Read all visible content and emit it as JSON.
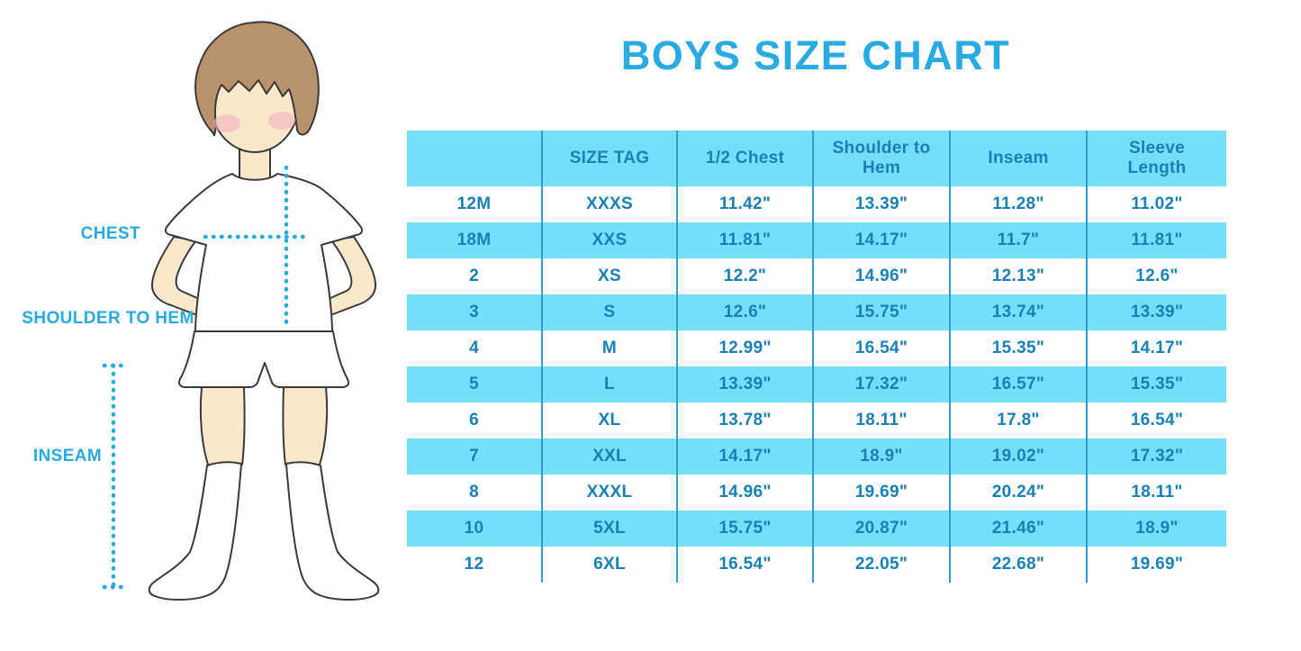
{
  "title": "BOYS SIZE CHART",
  "diagram": {
    "chest_label": "CHEST",
    "shoulder_to_hem_label": "SHOULDER TO HEM",
    "inseam_label": "INSEAM"
  },
  "chart_data": {
    "type": "table",
    "title": "BOYS SIZE CHART",
    "columns": [
      "",
      "SIZE TAG",
      "1/2 Chest",
      "Shoulder to Hem",
      "Inseam",
      "Sleeve Length"
    ],
    "rows": [
      [
        "12M",
        "XXXS",
        "11.42\"",
        "13.39\"",
        "11.28\"",
        "11.02\""
      ],
      [
        "18M",
        "XXS",
        "11.81\"",
        "14.17\"",
        "11.7\"",
        "11.81\""
      ],
      [
        "2",
        "XS",
        "12.2\"",
        "14.96\"",
        "12.13\"",
        "12.6\""
      ],
      [
        "3",
        "S",
        "12.6\"",
        "15.75\"",
        "13.74\"",
        "13.39\""
      ],
      [
        "4",
        "M",
        "12.99\"",
        "16.54\"",
        "15.35\"",
        "14.17\""
      ],
      [
        "5",
        "L",
        "13.39\"",
        "17.32\"",
        "16.57\"",
        "15.35\""
      ],
      [
        "6",
        "XL",
        "13.78\"",
        "18.11\"",
        "17.8\"",
        "16.54\""
      ],
      [
        "7",
        "XXL",
        "14.17\"",
        "18.9\"",
        "19.02\"",
        "17.32\""
      ],
      [
        "8",
        "XXXL",
        "14.96\"",
        "19.69\"",
        "20.24\"",
        "18.11\""
      ],
      [
        "10",
        "5XL",
        "15.75\"",
        "20.87\"",
        "21.46\"",
        "18.9\""
      ],
      [
        "12",
        "6XL",
        "16.54\"",
        "22.05\"",
        "22.68\"",
        "19.69\""
      ]
    ]
  },
  "colors": {
    "accent": "#29ABE2",
    "cyan": "#73E0F9",
    "line": "#2D9CCF",
    "table_text": "#1A80B6",
    "hair": "#B8926A",
    "skin": "#FAE8CD",
    "blush": "#F2AFC1",
    "outline": "#3A3A3A"
  }
}
